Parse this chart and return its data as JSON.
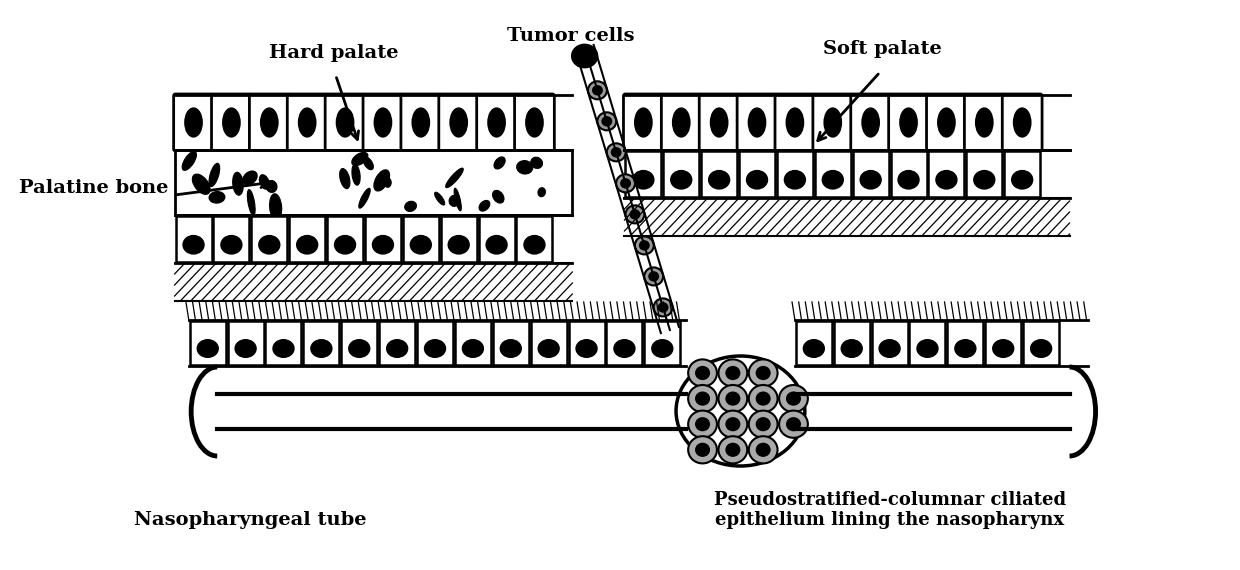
{
  "bg_color": "#ffffff",
  "labels": {
    "hard_palate": "Hard palate",
    "soft_palate": "Soft palate",
    "palatine_bone": "Palatine bone",
    "tumor_cells": "Tumor cells",
    "nasopharyngeal_tube": "Nasopharyngeal tube",
    "pseudostratified": "Pseudostratified-columnar ciliated\nepithelium lining the nasopharynx"
  },
  "figsize": [
    12.4,
    5.7
  ],
  "dpi": 100
}
